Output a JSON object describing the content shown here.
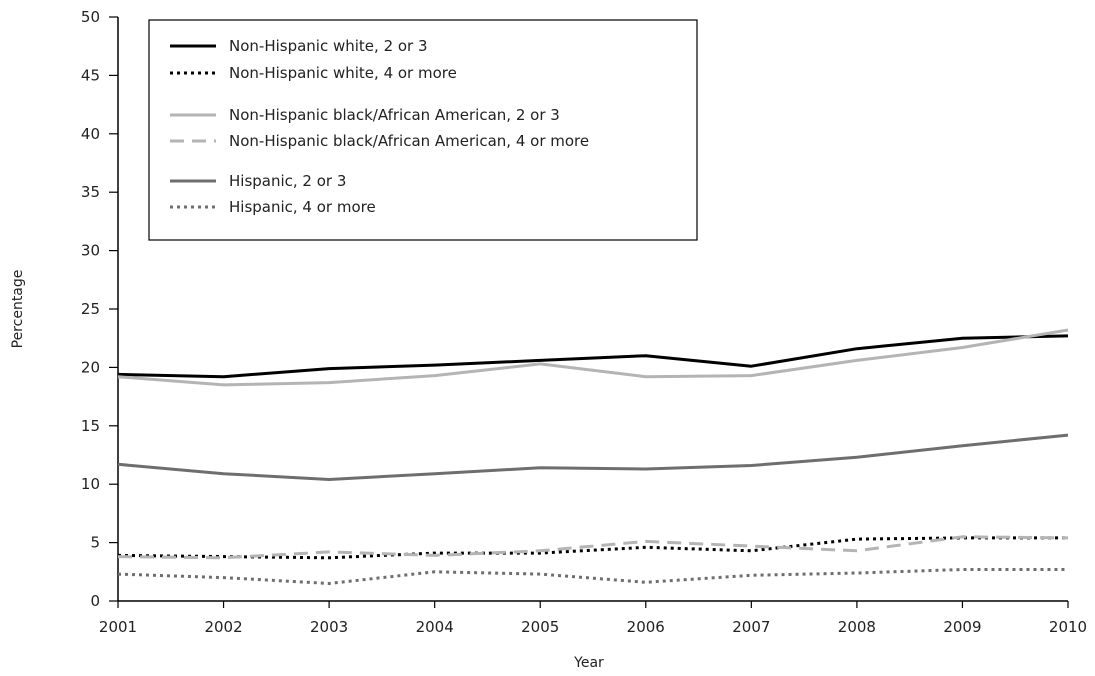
{
  "chart_data": {
    "type": "line",
    "title": "",
    "xlabel": "Year",
    "ylabel": "Percentage",
    "x": [
      2001,
      2002,
      2003,
      2004,
      2005,
      2006,
      2007,
      2008,
      2009,
      2010
    ],
    "ylim": [
      0,
      50
    ],
    "yticks": [
      0,
      5,
      10,
      15,
      20,
      25,
      30,
      35,
      40,
      45,
      50
    ],
    "grid": false,
    "legend_position": "top-left",
    "series": [
      {
        "name": "Non-Hispanic white, 2 or 3",
        "color": "#000000",
        "style": "solid",
        "values": [
          19.4,
          19.2,
          19.9,
          20.2,
          20.6,
          21.0,
          20.1,
          21.6,
          22.5,
          22.7
        ]
      },
      {
        "name": "Non-Hispanic white, 4 or more",
        "color": "#000000",
        "style": "dotted",
        "values": [
          3.9,
          3.8,
          3.7,
          4.1,
          4.1,
          4.6,
          4.3,
          5.3,
          5.4,
          5.4
        ]
      },
      {
        "name": "Non-Hispanic black/African American, 2 or 3",
        "color": "#b4b4b4",
        "style": "solid",
        "values": [
          19.2,
          18.5,
          18.7,
          19.3,
          20.3,
          19.2,
          19.3,
          20.6,
          21.7,
          23.2
        ]
      },
      {
        "name": "Non-Hispanic black/African American, 4 or more",
        "color": "#b4b4b4",
        "style": "dashed",
        "values": [
          3.8,
          3.7,
          4.2,
          3.9,
          4.3,
          5.1,
          4.7,
          4.3,
          5.5,
          5.4
        ]
      },
      {
        "name": "Hispanic, 2 or 3",
        "color": "#6e6e6e",
        "style": "solid",
        "values": [
          11.7,
          10.9,
          10.4,
          10.9,
          11.4,
          11.3,
          11.6,
          12.3,
          13.3,
          14.2
        ]
      },
      {
        "name": "Hispanic, 4 or more",
        "color": "#6e6e6e",
        "style": "dotted",
        "values": [
          2.3,
          2.0,
          1.5,
          2.5,
          2.3,
          1.6,
          2.2,
          2.4,
          2.7,
          2.7
        ]
      }
    ]
  }
}
